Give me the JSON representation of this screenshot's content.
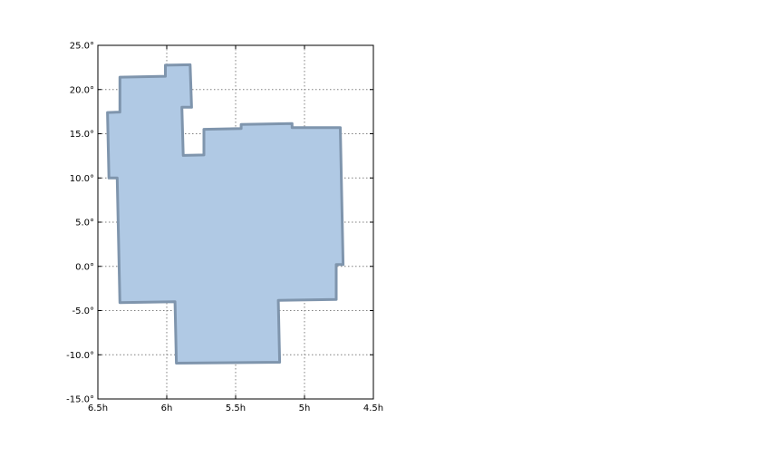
{
  "chart_data": {
    "type": "area",
    "title": "",
    "xlabel": "",
    "ylabel": "",
    "xlim": [
      6.5,
      4.5
    ],
    "ylim": [
      -15.0,
      25.0
    ],
    "x_inverted": true,
    "grid": true,
    "x_ticks": [
      {
        "value": 6.5,
        "label": "6.5h"
      },
      {
        "value": 6.0,
        "label": "6h"
      },
      {
        "value": 5.5,
        "label": "5.5h"
      },
      {
        "value": 5.0,
        "label": "5h"
      },
      {
        "value": 4.5,
        "label": "4.5h"
      }
    ],
    "y_ticks": [
      {
        "value": 25.0,
        "label": "25.0°"
      },
      {
        "value": 20.0,
        "label": "20.0°"
      },
      {
        "value": 15.0,
        "label": "15.0°"
      },
      {
        "value": 10.0,
        "label": "10.0°"
      },
      {
        "value": 5.0,
        "label": "5.0°"
      },
      {
        "value": 0.0,
        "label": "0.0°"
      },
      {
        "value": -5.0,
        "label": "-5.0°"
      },
      {
        "value": -10.0,
        "label": "-10.0°"
      },
      {
        "value": -15.0,
        "label": "-15.0°"
      }
    ],
    "fill_color": "#b0c9e4",
    "edge_color": "#7f95ad",
    "polygon": [
      [
        6.01,
        22.75
      ],
      [
        5.83,
        22.8
      ],
      [
        5.82,
        18.0
      ],
      [
        5.89,
        18.0
      ],
      [
        5.88,
        12.55
      ],
      [
        5.73,
        12.6
      ],
      [
        5.73,
        15.5
      ],
      [
        5.46,
        15.6
      ],
      [
        5.46,
        16.05
      ],
      [
        5.09,
        16.15
      ],
      [
        5.09,
        15.7
      ],
      [
        4.74,
        15.7
      ],
      [
        4.72,
        0.2
      ],
      [
        4.77,
        0.2
      ],
      [
        4.77,
        -3.75
      ],
      [
        5.19,
        -3.85
      ],
      [
        5.18,
        -10.85
      ],
      [
        5.93,
        -10.95
      ],
      [
        5.94,
        -4.0
      ],
      [
        6.34,
        -4.1
      ],
      [
        6.36,
        10.0
      ],
      [
        6.42,
        10.0
      ],
      [
        6.43,
        17.4
      ],
      [
        6.34,
        17.45
      ],
      [
        6.34,
        21.4
      ],
      [
        6.01,
        21.5
      ]
    ]
  }
}
